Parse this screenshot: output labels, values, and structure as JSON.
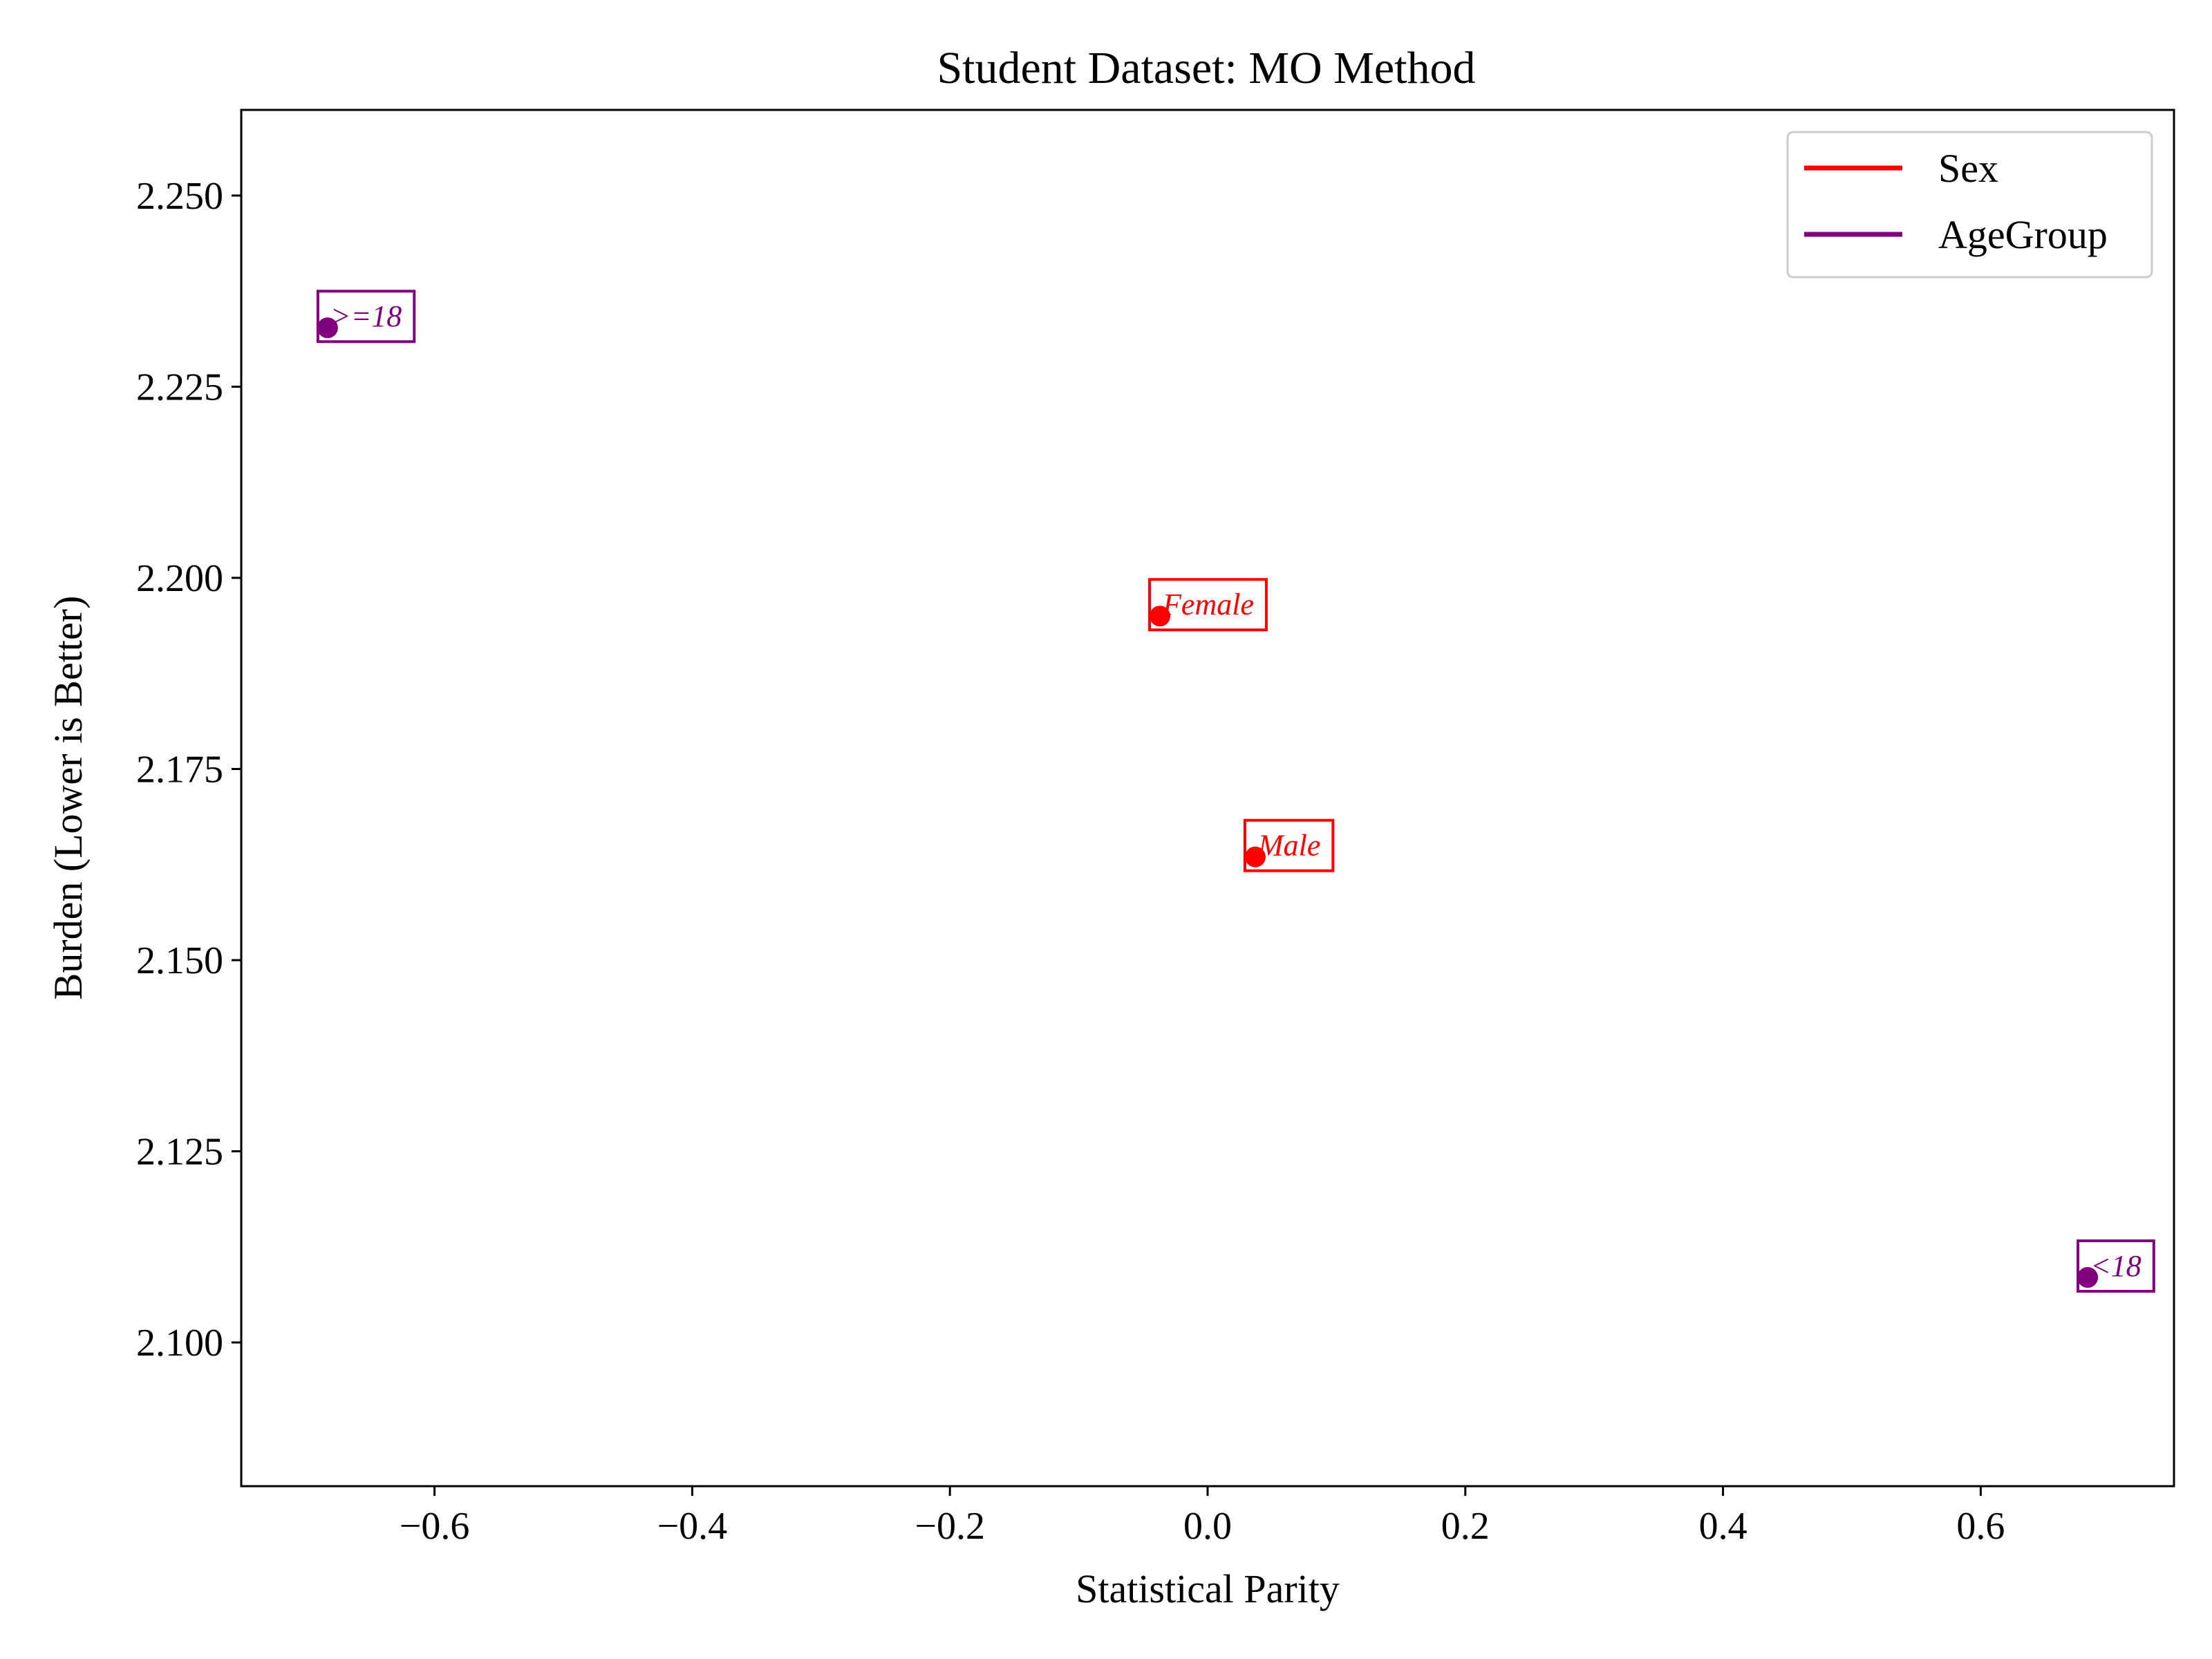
{
  "chart_data": {
    "type": "scatter",
    "title": "Student Dataset: MO Method",
    "xlabel": "Statistical Parity",
    "ylabel": "Burden (Lower is Better)",
    "xlim": [
      -0.75,
      0.75
    ],
    "ylim": [
      2.0812,
      2.2612
    ],
    "xticks": [
      -0.6,
      -0.4,
      -0.2,
      0.0,
      0.2,
      0.4,
      0.6
    ],
    "xtick_labels": [
      "−0.6",
      "−0.4",
      "−0.2",
      "0.0",
      "0.2",
      "0.4",
      "0.6"
    ],
    "yticks": [
      2.1,
      2.125,
      2.15,
      2.175,
      2.2,
      2.225,
      2.25
    ],
    "ytick_labels": [
      "2.100",
      "2.125",
      "2.150",
      "2.175",
      "2.200",
      "2.225",
      "2.250"
    ],
    "grid": false,
    "legend_position": "top-right",
    "series": [
      {
        "name": "Sex",
        "color": "#ff0000",
        "points": [
          {
            "label": "Female",
            "x": -0.037,
            "y": 2.195
          },
          {
            "label": "Male",
            "x": 0.037,
            "y": 2.1635
          }
        ]
      },
      {
        "name": "AgeGroup",
        "color": "#800080",
        "points": [
          {
            "label": ">=18",
            "x": -0.683,
            "y": 2.2327
          },
          {
            "label": "<18",
            "x": 0.683,
            "y": 2.1085
          }
        ]
      }
    ]
  }
}
